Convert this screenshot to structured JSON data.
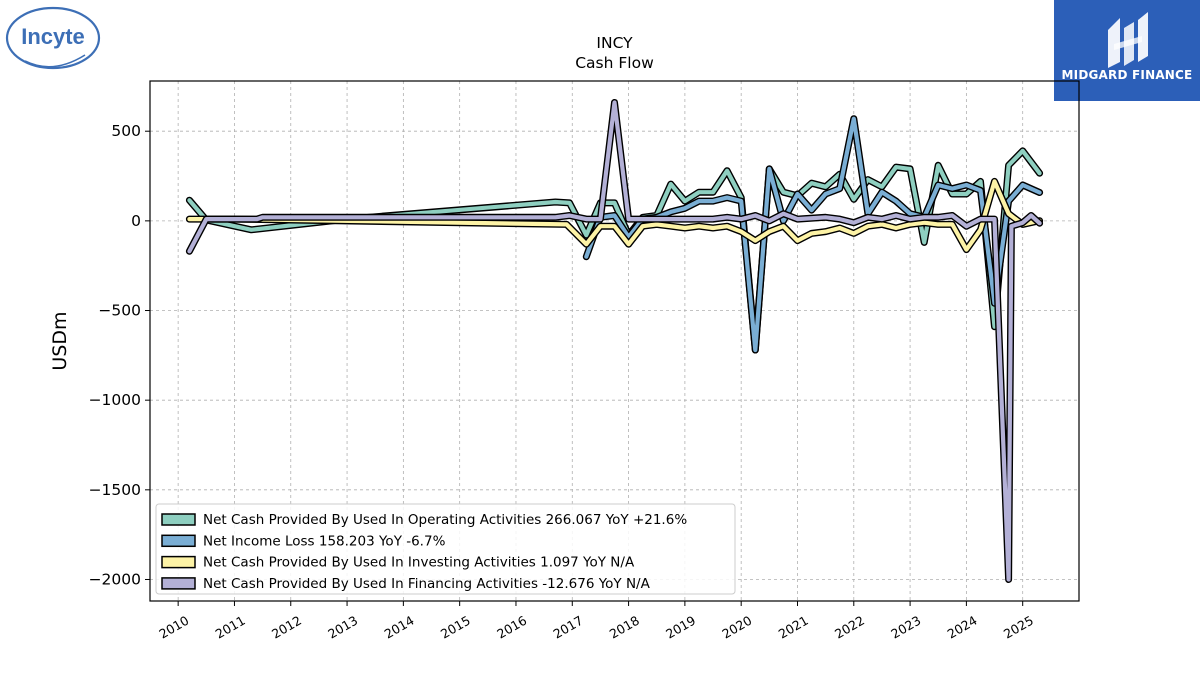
{
  "logos": {
    "left": {
      "text": "Incyte",
      "color": "#3d6fb6"
    },
    "right": {
      "text": "MIDGARD FINANCE",
      "bg": "#2c5fb8"
    }
  },
  "chart_data": {
    "type": "line",
    "title": "INCY",
    "subtitle": "Cash Flow",
    "ylabel": "USDm",
    "xlabel": "",
    "xlim": [
      2009.5,
      2026.0
    ],
    "ylim": [
      -2120,
      780
    ],
    "x_ticks": [
      "2010",
      "2011",
      "2012",
      "2013",
      "2014",
      "2015",
      "2016",
      "2017",
      "2018",
      "2019",
      "2020",
      "2021",
      "2022",
      "2023",
      "2024",
      "2025"
    ],
    "y_ticks": [
      500,
      0,
      -500,
      -1000,
      -1500,
      -2000
    ],
    "y_tick_labels": [
      "500",
      "0",
      "−500",
      "−1000",
      "−1500",
      "−2000"
    ],
    "grid": true,
    "legend_position": "lower-left",
    "series": [
      {
        "name": "Net Cash Provided By Used In Operating Activities",
        "legend": "Net Cash Provided By Used In Operating Activities  266.067 YoY +21.6%",
        "color": "#8ecfc0",
        "points": [
          [
            2010.2,
            115
          ],
          [
            2010.5,
            5
          ],
          [
            2011.3,
            -50
          ],
          [
            2013.0,
            10
          ],
          [
            2016.7,
            105
          ],
          [
            2016.95,
            100
          ],
          [
            2017.25,
            -80
          ],
          [
            2017.5,
            100
          ],
          [
            2017.75,
            100
          ],
          [
            2018.0,
            -80
          ],
          [
            2018.25,
            20
          ],
          [
            2018.5,
            30
          ],
          [
            2018.75,
            205
          ],
          [
            2019.0,
            110
          ],
          [
            2019.25,
            160
          ],
          [
            2019.5,
            160
          ],
          [
            2019.75,
            280
          ],
          [
            2020.0,
            130
          ],
          [
            2020.25,
            -720
          ],
          [
            2020.5,
            290
          ],
          [
            2020.75,
            160
          ],
          [
            2021.0,
            140
          ],
          [
            2021.25,
            210
          ],
          [
            2021.5,
            190
          ],
          [
            2021.75,
            260
          ],
          [
            2022.0,
            120
          ],
          [
            2022.25,
            230
          ],
          [
            2022.5,
            190
          ],
          [
            2022.75,
            300
          ],
          [
            2023.0,
            290
          ],
          [
            2023.25,
            -120
          ],
          [
            2023.5,
            310
          ],
          [
            2023.75,
            150
          ],
          [
            2024.0,
            150
          ],
          [
            2024.25,
            220
          ],
          [
            2024.5,
            -590
          ],
          [
            2024.75,
            310
          ],
          [
            2025.0,
            390
          ],
          [
            2025.3,
            266
          ]
        ]
      },
      {
        "name": "Net Income Loss",
        "legend": "Net Income Loss  158.203 YoY -6.7%",
        "color": "#7aaed4",
        "points": [
          [
            2017.25,
            -200
          ],
          [
            2017.5,
            20
          ],
          [
            2017.75,
            30
          ],
          [
            2018.0,
            -90
          ],
          [
            2018.25,
            10
          ],
          [
            2018.5,
            20
          ],
          [
            2018.75,
            50
          ],
          [
            2019.0,
            70
          ],
          [
            2019.25,
            110
          ],
          [
            2019.5,
            110
          ],
          [
            2019.75,
            130
          ],
          [
            2020.0,
            110
          ],
          [
            2020.25,
            -720
          ],
          [
            2020.5,
            290
          ],
          [
            2020.75,
            0
          ],
          [
            2021.0,
            150
          ],
          [
            2021.25,
            60
          ],
          [
            2021.5,
            150
          ],
          [
            2021.75,
            180
          ],
          [
            2022.0,
            570
          ],
          [
            2022.25,
            40
          ],
          [
            2022.5,
            160
          ],
          [
            2022.75,
            110
          ],
          [
            2023.0,
            40
          ],
          [
            2023.25,
            20
          ],
          [
            2023.5,
            200
          ],
          [
            2023.75,
            180
          ],
          [
            2024.0,
            200
          ],
          [
            2024.25,
            170
          ],
          [
            2024.5,
            -460
          ],
          [
            2024.75,
            110
          ],
          [
            2025.0,
            200
          ],
          [
            2025.3,
            158
          ]
        ]
      },
      {
        "name": "Net Cash Provided By Used In Investing Activities",
        "legend": "Net Cash Provided By Used In Investing Activities  1.097 YoY N/A",
        "color": "#fdf3a6",
        "points": [
          [
            2010.2,
            10
          ],
          [
            2011.0,
            10
          ],
          [
            2016.9,
            -20
          ],
          [
            2017.25,
            -130
          ],
          [
            2017.5,
            -30
          ],
          [
            2017.75,
            -30
          ],
          [
            2018.0,
            -130
          ],
          [
            2018.25,
            -30
          ],
          [
            2018.5,
            -20
          ],
          [
            2018.75,
            -30
          ],
          [
            2019.0,
            -40
          ],
          [
            2019.25,
            -30
          ],
          [
            2019.5,
            -40
          ],
          [
            2019.75,
            -30
          ],
          [
            2020.0,
            -60
          ],
          [
            2020.25,
            -110
          ],
          [
            2020.5,
            -60
          ],
          [
            2020.75,
            -30
          ],
          [
            2021.0,
            -110
          ],
          [
            2021.25,
            -70
          ],
          [
            2021.5,
            -60
          ],
          [
            2021.75,
            -40
          ],
          [
            2022.0,
            -70
          ],
          [
            2022.25,
            -30
          ],
          [
            2022.5,
            -20
          ],
          [
            2022.75,
            -40
          ],
          [
            2023.0,
            -20
          ],
          [
            2023.25,
            -10
          ],
          [
            2023.5,
            -20
          ],
          [
            2023.75,
            -20
          ],
          [
            2024.0,
            -160
          ],
          [
            2024.25,
            -50
          ],
          [
            2024.5,
            220
          ],
          [
            2024.75,
            40
          ],
          [
            2025.0,
            -20
          ],
          [
            2025.3,
            1
          ]
        ]
      },
      {
        "name": "Net Cash Provided By Used In Financing Activities",
        "legend": "Net Cash Provided By Used In Financing Activities  -12.676 YoY N/A",
        "color": "#b3b0d6",
        "points": [
          [
            2010.2,
            -170
          ],
          [
            2010.5,
            10
          ],
          [
            2011.0,
            10
          ],
          [
            2011.4,
            10
          ],
          [
            2011.5,
            20
          ],
          [
            2016.7,
            20
          ],
          [
            2016.95,
            30
          ],
          [
            2017.25,
            10
          ],
          [
            2017.5,
            10
          ],
          [
            2017.75,
            660
          ],
          [
            2018.0,
            10
          ],
          [
            2018.5,
            10
          ],
          [
            2019.0,
            10
          ],
          [
            2019.5,
            10
          ],
          [
            2019.75,
            20
          ],
          [
            2020.0,
            10
          ],
          [
            2020.25,
            30
          ],
          [
            2020.5,
            0
          ],
          [
            2020.75,
            40
          ],
          [
            2021.0,
            10
          ],
          [
            2021.5,
            20
          ],
          [
            2021.75,
            10
          ],
          [
            2022.0,
            -10
          ],
          [
            2022.25,
            20
          ],
          [
            2022.5,
            10
          ],
          [
            2022.75,
            30
          ],
          [
            2023.0,
            10
          ],
          [
            2023.25,
            20
          ],
          [
            2023.5,
            20
          ],
          [
            2023.75,
            30
          ],
          [
            2024.0,
            -30
          ],
          [
            2024.25,
            10
          ],
          [
            2024.5,
            10
          ],
          [
            2024.75,
            -2000
          ],
          [
            2024.8,
            -30
          ],
          [
            2025.0,
            -10
          ],
          [
            2025.15,
            30
          ],
          [
            2025.3,
            -13
          ]
        ]
      }
    ]
  }
}
